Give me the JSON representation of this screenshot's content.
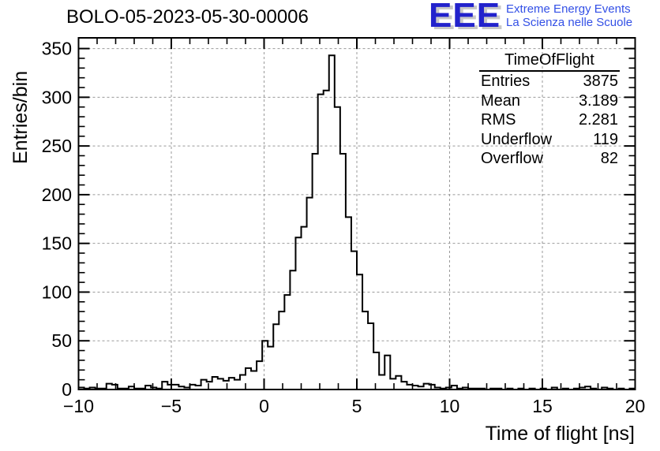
{
  "title": "BOLO-05-2023-05-30-00006",
  "logo": {
    "acronym": "EEE",
    "line1": "Extreme Energy Events",
    "line2": "La Scienza nelle Scuole",
    "acronym_color": "#2222CC",
    "tagline_color": "#3350E6",
    "shadow_color": "#C8C8C8"
  },
  "stats": {
    "title": "TimeOfFlight",
    "rows": [
      {
        "label": "Entries",
        "value": "3875"
      },
      {
        "label": "Mean",
        "value": "3.189"
      },
      {
        "label": "RMS",
        "value": "2.281"
      },
      {
        "label": "Underflow",
        "value": "119"
      },
      {
        "label": "Overflow",
        "value": "82"
      }
    ]
  },
  "axes": {
    "x_title": "Time of flight [ns]",
    "y_title": "Entries/bin"
  },
  "chart_data": {
    "type": "bar",
    "subtype": "step-histogram",
    "title": "BOLO-05-2023-05-30-00006",
    "xlabel": "Time of flight [ns]",
    "ylabel": "Entries/bin",
    "xlim": [
      -10,
      20
    ],
    "ylim": [
      0,
      361
    ],
    "bin_start": -10,
    "bin_width": 0.3,
    "values": [
      2,
      1,
      2,
      1,
      1,
      6,
      5,
      1,
      1,
      3,
      1,
      1,
      4,
      2,
      1,
      8,
      5,
      5,
      3,
      2,
      5,
      4,
      10,
      8,
      13,
      11,
      9,
      12,
      10,
      15,
      22,
      19,
      29,
      50,
      44,
      67,
      80,
      97,
      122,
      156,
      167,
      197,
      242,
      303,
      307,
      343,
      290,
      242,
      177,
      142,
      118,
      80,
      68,
      38,
      15,
      35,
      11,
      14,
      8,
      5,
      4,
      3,
      6,
      5,
      2,
      1,
      2,
      4,
      1,
      2,
      1,
      1,
      1,
      0,
      1,
      1,
      0,
      1,
      0,
      1,
      0,
      1,
      0,
      1,
      0,
      2,
      0,
      1,
      0,
      1,
      2,
      3,
      1,
      0,
      2,
      1,
      0,
      1,
      0,
      1
    ],
    "x_major_ticks": [
      -10,
      -5,
      0,
      5,
      10,
      15,
      20
    ],
    "x_tick_labels": [
      "−10",
      "−5",
      "0",
      "5",
      "10",
      "15",
      "20"
    ],
    "x_minor_step": 1,
    "y_major_ticks": [
      0,
      50,
      100,
      150,
      200,
      250,
      300,
      350
    ],
    "y_tick_labels": [
      "0",
      "50",
      "100",
      "150",
      "200",
      "250",
      "300",
      "350"
    ],
    "y_minor_step": 10,
    "grid": true,
    "grid_color": "#999999",
    "line_color": "#000000",
    "frame_color": "#000000",
    "legend_position": "none",
    "peak_value": 343,
    "peak_bin_range_ns": [
      3.5,
      3.8
    ]
  }
}
